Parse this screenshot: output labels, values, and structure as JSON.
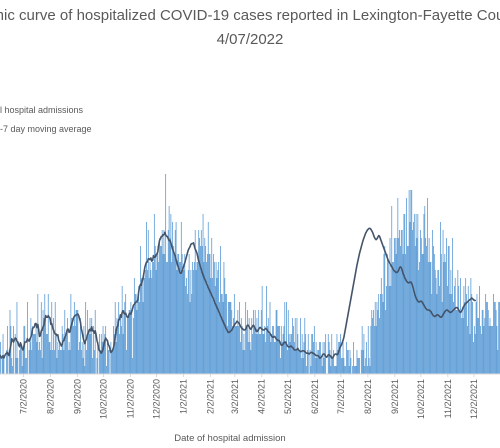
{
  "chart_data": {
    "type": "bar",
    "title_line1": "emic curve of hospitalized COVID-19 cases reported in Lexington-Fayette Count",
    "title_line2": "4/07/2022",
    "xlabel": "Date of hospital admission",
    "ylabel": "",
    "legend": [
      {
        "label": "l hospital admissions",
        "color": "#5b9bd5",
        "marker": "bar"
      },
      {
        "label": "-7 day moving average",
        "color": "#44546a",
        "marker": "line"
      }
    ],
    "x_ticks": [
      "7/2/2020",
      "8/2/2020",
      "9/2/2020",
      "10/2/2020",
      "11/2/2020",
      "12/2/2020",
      "1/2/2021",
      "2/2/2021",
      "3/2/2021",
      "4/2/2021",
      "5/2/2021",
      "6/2/2021",
      "7/2/2021",
      "8/2/2021",
      "9/2/2021",
      "10/2/2021",
      "11/2/2021",
      "12/2/2021"
    ],
    "x_start": "2020-06-05",
    "x_end": "2022-01-01",
    "ylim": [
      0,
      25
    ],
    "grid": false,
    "daily_admissions": [
      4,
      0,
      2,
      5,
      2,
      0,
      0,
      3,
      6,
      0,
      3,
      8,
      6,
      2,
      1,
      6,
      0,
      5,
      2,
      9,
      2,
      0,
      3,
      4,
      3,
      1,
      3,
      6,
      6,
      2,
      2,
      9,
      0,
      3,
      4,
      7,
      3,
      6,
      5,
      5,
      5,
      6,
      4,
      10,
      3,
      4,
      3,
      9,
      2,
      8,
      7,
      10,
      7,
      5,
      5,
      10,
      4,
      4,
      3,
      9,
      3,
      7,
      3,
      9,
      5,
      2,
      4,
      3,
      4,
      3,
      3,
      6,
      5,
      3,
      8,
      5,
      5,
      7,
      3,
      4,
      3,
      10,
      7,
      7,
      6,
      9,
      6,
      8,
      8,
      8,
      3,
      4,
      7,
      3,
      4,
      2,
      6,
      1,
      9,
      3,
      8,
      5,
      5,
      7,
      5,
      7,
      2,
      6,
      3,
      8,
      0,
      2,
      4,
      0,
      5,
      3,
      5,
      4,
      6,
      4,
      5,
      6,
      1,
      4,
      3,
      3,
      0,
      4,
      3,
      3,
      6,
      5,
      9,
      4,
      7,
      6,
      9,
      5,
      7,
      6,
      11,
      5,
      8,
      9,
      10,
      3,
      7,
      7,
      8,
      8,
      9,
      8,
      2,
      7,
      12,
      10,
      10,
      8,
      9,
      11,
      9,
      16,
      12,
      12,
      9,
      13,
      12,
      13,
      19,
      13,
      18,
      12,
      14,
      13,
      12,
      14,
      14,
      20,
      16,
      13,
      15,
      16,
      14,
      17,
      16,
      16,
      18,
      15,
      18,
      15,
      25,
      14,
      14,
      18,
      21,
      17,
      20,
      14,
      19,
      16,
      15,
      18,
      19,
      13,
      15,
      15,
      14,
      14,
      19,
      15,
      13,
      13,
      15,
      11,
      12,
      10,
      13,
      15,
      9,
      13,
      10,
      14,
      13,
      14,
      18,
      13,
      14,
      14,
      18,
      17,
      16,
      18,
      16,
      20,
      14,
      17,
      16,
      14,
      15,
      19,
      15,
      15,
      12,
      17,
      12,
      15,
      14,
      11,
      14,
      12,
      13,
      14,
      9,
      16,
      10,
      10,
      9,
      14,
      12,
      10,
      10,
      6,
      9,
      9,
      9,
      9,
      8,
      6,
      7,
      10,
      6,
      6,
      6,
      8,
      6,
      9,
      4,
      7,
      6,
      3,
      5,
      3,
      9,
      6,
      8,
      4,
      7,
      4,
      3,
      7,
      5,
      8,
      6,
      8,
      5,
      7,
      5,
      8,
      5,
      5,
      8,
      11,
      5,
      5,
      6,
      4,
      11,
      6,
      7,
      5,
      9,
      4,
      5,
      6,
      6,
      4,
      4,
      8,
      8,
      6,
      6,
      6,
      2,
      6,
      4,
      5,
      6,
      9,
      4,
      9,
      3,
      8,
      5,
      4,
      5,
      5,
      7,
      6,
      4,
      7,
      3,
      7,
      5,
      3,
      3,
      7,
      2,
      5,
      2,
      4,
      7,
      5,
      1,
      3,
      5,
      0,
      3,
      1,
      5,
      5,
      4,
      6,
      2,
      4,
      2,
      3,
      3,
      4,
      4,
      2,
      1,
      4,
      2,
      4,
      5,
      0,
      0,
      5,
      4,
      3,
      1,
      5,
      2,
      3,
      1,
      1,
      1,
      5,
      3,
      4,
      4,
      5,
      2,
      2,
      4,
      2,
      1,
      1,
      4,
      3,
      3,
      1,
      3,
      2,
      0,
      1,
      4,
      1,
      1,
      1,
      3,
      2,
      2,
      2,
      0,
      3,
      6,
      3,
      5,
      1,
      2,
      4,
      1,
      6,
      2,
      1,
      6,
      8,
      7,
      8,
      6,
      9,
      6,
      9,
      8,
      10,
      7,
      10,
      12,
      10,
      9,
      15,
      16,
      8,
      11,
      15,
      14,
      11,
      17,
      11,
      21,
      14,
      14,
      17,
      17,
      15,
      17,
      22,
      17,
      18,
      16,
      18,
      18,
      15,
      20,
      20,
      15,
      22,
      16,
      16,
      23,
      19,
      23,
      23,
      18,
      19,
      20,
      16,
      20,
      17,
      20,
      13,
      14,
      18,
      17,
      15,
      15,
      20,
      21,
      17,
      16,
      22,
      14,
      17,
      14,
      14,
      10,
      18,
      16,
      15,
      13,
      12,
      10,
      13,
      13,
      11,
      19,
      15,
      9,
      18,
      14,
      15,
      14,
      17,
      11,
      16,
      16,
      10,
      13,
      10,
      17,
      9,
      11,
      12,
      8,
      8,
      13,
      11,
      8,
      12,
      7,
      8,
      7,
      11,
      9,
      12,
      10,
      6,
      11,
      9,
      5,
      12,
      10,
      9,
      4,
      6,
      5,
      9,
      10,
      7,
      7,
      11,
      6,
      5,
      8,
      8,
      6,
      7,
      10,
      9,
      9,
      8,
      6,
      7,
      6,
      6,
      6,
      10,
      9,
      9,
      8,
      6,
      3,
      9,
      9,
      7,
      10,
      7,
      8,
      9,
      6,
      9,
      6,
      9,
      11,
      10,
      7,
      8,
      10,
      8,
      10,
      9,
      9,
      7,
      8,
      12,
      10,
      9,
      10,
      9,
      12,
      5,
      10
    ],
    "moving_average": [
      2.3,
      2.0,
      2.1,
      2.3,
      2.0,
      2.3,
      2.5,
      2.6,
      2.7,
      2.4,
      2.3,
      3.1,
      3.6,
      4.4,
      4.2,
      4.0,
      4.3,
      4.5,
      4.4,
      4.1,
      4.0,
      3.6,
      3.4,
      3.9,
      3.6,
      3.1,
      3.0,
      3.5,
      4.0,
      4.0,
      4.0,
      4.4,
      4.2,
      4.1,
      4.4,
      4.6,
      5.0,
      5.7,
      5.8,
      5.9,
      6.3,
      6.3,
      5.8,
      6.2,
      5.5,
      4.7,
      4.8,
      5.4,
      5.5,
      5.9,
      6.1,
      6.8,
      7.3,
      7.1,
      7.1,
      7.3,
      7.1,
      7.0,
      6.2,
      6.3,
      5.8,
      5.5,
      5.2,
      5.0,
      5.0,
      4.8,
      4.9,
      4.2,
      4.0,
      3.8,
      3.5,
      3.7,
      4.1,
      4.2,
      4.6,
      4.8,
      5.2,
      5.6,
      5.6,
      5.2,
      5.3,
      5.9,
      6.3,
      6.6,
      7.0,
      7.2,
      7.3,
      7.4,
      7.4,
      7.5,
      7.3,
      6.9,
      6.5,
      5.7,
      5.2,
      4.6,
      4.1,
      3.8,
      4.2,
      4.4,
      4.9,
      5.1,
      5.5,
      5.6,
      5.4,
      5.9,
      5.4,
      5.4,
      5.1,
      5.4,
      4.9,
      4.2,
      3.8,
      3.1,
      2.9,
      2.8,
      2.6,
      2.8,
      3.1,
      3.7,
      4.2,
      4.5,
      4.3,
      4.2,
      3.7,
      3.5,
      3.1,
      2.7,
      2.8,
      3.0,
      3.3,
      3.8,
      4.6,
      5.4,
      5.9,
      6.0,
      6.8,
      6.8,
      7.4,
      7.1,
      7.7,
      7.9,
      7.6,
      7.5,
      7.6,
      7.3,
      7.1,
      7.1,
      7.5,
      7.6,
      7.5,
      7.8,
      8.2,
      8.6,
      8.7,
      8.9,
      9.0,
      9.0,
      9.3,
      10.3,
      10.9,
      11.2,
      11.1,
      11.6,
      12.0,
      12.6,
      13.3,
      13.7,
      14.0,
      14.0,
      14.4,
      14.4,
      14.3,
      14.5,
      14.1,
      14.2,
      14.8,
      14.6,
      14.6,
      14.9,
      15.0,
      15.3,
      16.1,
      16.7,
      16.9,
      17.2,
      17.2,
      17.4,
      17.4,
      17.7,
      17.4,
      17.2,
      17.2,
      16.9,
      16.7,
      16.7,
      16.4,
      16.0,
      15.6,
      15.3,
      15.0,
      14.8,
      14.3,
      13.9,
      13.5,
      13.2,
      12.8,
      12.6,
      12.6,
      12.9,
      13.2,
      13.6,
      13.9,
      14.3,
      14.7,
      15.1,
      15.5,
      15.7,
      15.9,
      16.2,
      16.3,
      16.3,
      16.4,
      16.0,
      15.6,
      15.4,
      15.1,
      14.6,
      14.1,
      13.8,
      13.4,
      13.1,
      12.7,
      12.4,
      12.1,
      11.8,
      11.6,
      11.3,
      11.1,
      10.8,
      10.6,
      10.3,
      10.1,
      9.8,
      9.6,
      9.4,
      9.1,
      8.8,
      8.6,
      8.3,
      8.1,
      7.8,
      7.6,
      7.3,
      7.1,
      6.8,
      6.6,
      6.3,
      6.1,
      5.8,
      5.6,
      5.4,
      5.2,
      5.2,
      5.3,
      5.4,
      5.5,
      5.7,
      5.9,
      6.1,
      6.3,
      6.4,
      6.6,
      6.5,
      6.4,
      6.2,
      6.0,
      5.8,
      5.7,
      5.6,
      5.5,
      5.5,
      5.6,
      5.9,
      6.1,
      6.1,
      5.9,
      5.7,
      5.6,
      5.8,
      6.0,
      6.1,
      5.9,
      5.7,
      5.4,
      5.3,
      5.4,
      5.6,
      5.8,
      5.8,
      5.7,
      5.6,
      5.5,
      5.5,
      5.6,
      5.7,
      5.6,
      5.5,
      5.3,
      5.2,
      5.1,
      4.9,
      4.7,
      4.6,
      4.6,
      4.7,
      4.6,
      4.4,
      4.3,
      4.2,
      4.2,
      4.1,
      3.8,
      3.6,
      3.6,
      3.7,
      3.9,
      4.0,
      4.0,
      3.7,
      3.5,
      3.4,
      3.4,
      3.4,
      3.5,
      3.4,
      3.3,
      3.2,
      3.0,
      3.0,
      3.0,
      3.1,
      3.2,
      3.0,
      2.9,
      2.8,
      2.8,
      2.9,
      2.9,
      2.9,
      2.8,
      2.7,
      2.6,
      2.6,
      2.6,
      2.5,
      2.6,
      2.7,
      2.7,
      2.6,
      2.6,
      2.5,
      2.4,
      2.3,
      2.3,
      2.3,
      2.2,
      2.0,
      2.0,
      2.1,
      2.3,
      2.5,
      2.5,
      2.4,
      2.2,
      2.1,
      2.2,
      2.4,
      2.4,
      2.3,
      2.2,
      2.0,
      2.0,
      2.2,
      2.4,
      2.5,
      2.5,
      2.4,
      2.5,
      2.8,
      3.2,
      3.4,
      3.6,
      3.9,
      4.2,
      4.6,
      5.2,
      5.8,
      6.4,
      7.0,
      7.6,
      8.2,
      8.8,
      9.4,
      10.0,
      10.6,
      11.2,
      11.8,
      12.4,
      13.0,
      13.6,
      14.1,
      14.6,
      15.1,
      15.5,
      15.9,
      16.3,
      16.7,
      17.0,
      17.3,
      17.6,
      17.8,
      18.0,
      18.1,
      18.2,
      18.2,
      18.1,
      17.9,
      17.7,
      17.4,
      17.1,
      16.9,
      16.8,
      16.9,
      17.1,
      17.3,
      17.2,
      16.9,
      16.6,
      16.3,
      16.0,
      15.7,
      15.4,
      15.1,
      14.8,
      14.5,
      14.2,
      14.0,
      13.8,
      13.6,
      13.4,
      13.2,
      13.0,
      12.9,
      12.8,
      12.7,
      12.7,
      12.8,
      13.0,
      13.3,
      13.4,
      13.3,
      13.0,
      12.6,
      12.3,
      12.0,
      11.8,
      11.6,
      11.5,
      11.4,
      11.4,
      11.5,
      11.5,
      11.3,
      11.0,
      10.6,
      10.2,
      9.8,
      9.5,
      9.3,
      9.1,
      9.0,
      9.0,
      9.1,
      9.1,
      9.0,
      8.8,
      8.6,
      8.4,
      8.2,
      8.1,
      8.0,
      8.0,
      8.0,
      7.9,
      7.8,
      7.6,
      7.4,
      7.3,
      7.2,
      7.2,
      7.3,
      7.4,
      7.4,
      7.3,
      7.2,
      7.1,
      7.1,
      7.2,
      7.4,
      7.6,
      7.8,
      7.9,
      8.0,
      8.0,
      7.9,
      7.8,
      7.7,
      7.7,
      7.8,
      7.9,
      8.0,
      8.1,
      8.2,
      8.3,
      8.3,
      8.2,
      8.0,
      7.8,
      7.7,
      7.8,
      8.0,
      8.3,
      8.5,
      8.7,
      8.8,
      8.9,
      9.0,
      9.1,
      9.2,
      9.3,
      9.4,
      9.5,
      9.4,
      9.3,
      9.2,
      9.2
    ],
    "colors": {
      "bar": "#5b9bd5",
      "line": "#44546a",
      "text": "#595959",
      "axis": "#d9d9d9"
    }
  }
}
